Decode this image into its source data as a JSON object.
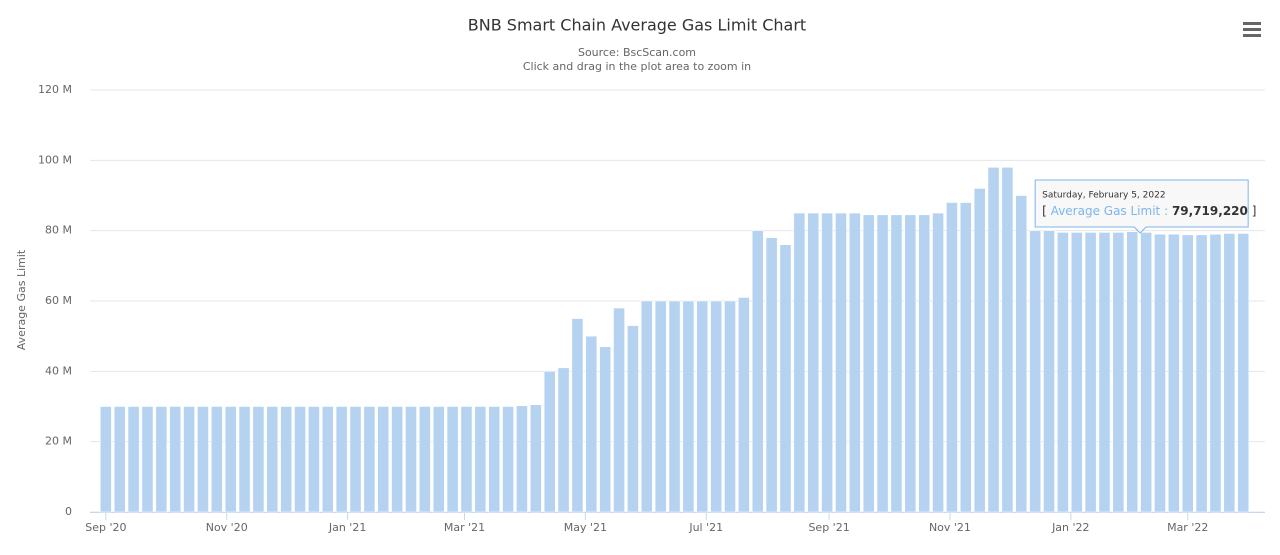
{
  "chart_data": {
    "type": "bar",
    "title": "BNB Smart Chain Average Gas Limit Chart",
    "subtitle": [
      "Source: BscScan.com",
      "Click and drag in the plot area to zoom in"
    ],
    "y_label": "Average Gas Limit",
    "x": [
      "2020-09-01",
      "2020-09-08",
      "2020-09-15",
      "2020-09-22",
      "2020-09-29",
      "2020-10-06",
      "2020-10-13",
      "2020-10-20",
      "2020-10-27",
      "2020-11-03",
      "2020-11-10",
      "2020-11-17",
      "2020-11-24",
      "2020-12-01",
      "2020-12-08",
      "2020-12-15",
      "2020-12-22",
      "2020-12-29",
      "2021-01-05",
      "2021-01-12",
      "2021-01-19",
      "2021-01-26",
      "2021-02-02",
      "2021-02-09",
      "2021-02-16",
      "2021-02-23",
      "2021-03-02",
      "2021-03-09",
      "2021-03-16",
      "2021-03-23",
      "2021-03-30",
      "2021-04-06",
      "2021-04-13",
      "2021-04-20",
      "2021-04-27",
      "2021-05-04",
      "2021-05-11",
      "2021-05-18",
      "2021-05-25",
      "2021-06-01",
      "2021-06-08",
      "2021-06-15",
      "2021-06-22",
      "2021-06-29",
      "2021-07-06",
      "2021-07-13",
      "2021-07-20",
      "2021-07-27",
      "2021-08-03",
      "2021-08-10",
      "2021-08-17",
      "2021-08-24",
      "2021-08-31",
      "2021-09-07",
      "2021-09-14",
      "2021-09-21",
      "2021-09-28",
      "2021-10-05",
      "2021-10-12",
      "2021-10-19",
      "2021-10-26",
      "2021-11-02",
      "2021-11-09",
      "2021-11-16",
      "2021-11-23",
      "2021-11-30",
      "2021-12-07",
      "2021-12-14",
      "2021-12-21",
      "2021-12-28",
      "2022-01-04",
      "2022-01-11",
      "2022-01-18",
      "2022-01-25",
      "2022-02-01",
      "2022-02-08",
      "2022-02-15",
      "2022-02-22",
      "2022-03-01",
      "2022-03-08",
      "2022-03-15",
      "2022-03-22",
      "2022-03-29"
    ],
    "series": [
      {
        "name": "Average Gas Limit",
        "color": "#b5d3f1",
        "values": [
          30,
          30,
          30,
          30,
          30,
          30,
          30,
          30,
          30,
          30,
          30,
          30,
          30,
          30,
          30,
          30,
          30,
          30,
          30,
          30,
          30,
          30,
          30,
          30,
          30,
          30,
          30,
          30,
          30,
          30,
          30.2,
          30.5,
          40,
          41,
          55,
          50,
          47,
          58,
          53,
          60,
          60,
          60,
          60,
          60,
          60,
          60,
          61,
          80,
          78,
          76,
          85,
          85,
          85,
          85,
          85,
          84.5,
          84.5,
          84.5,
          84.5,
          84.5,
          85,
          88,
          88,
          92,
          98,
          98,
          90,
          80,
          80,
          79.5,
          79.5,
          79.5,
          79.5,
          79.5,
          79.7,
          79.5,
          79,
          79,
          78.8,
          78.8,
          79,
          79.2,
          79.2
        ]
      }
    ],
    "xlim": [
      "2020-08-24",
      "2022-04-09"
    ],
    "xticks": [
      {
        "value": "2020-09-01",
        "label": "Sep '20"
      },
      {
        "value": "2020-11-01",
        "label": "Nov '20"
      },
      {
        "value": "2021-01-01",
        "label": "Jan '21"
      },
      {
        "value": "2021-03-01",
        "label": "Mar '21"
      },
      {
        "value": "2021-05-01",
        "label": "May '21"
      },
      {
        "value": "2021-07-01",
        "label": "Jul '21"
      },
      {
        "value": "2021-09-01",
        "label": "Sep '21"
      },
      {
        "value": "2021-11-01",
        "label": "Nov '21"
      },
      {
        "value": "2022-01-01",
        "label": "Jan '22"
      },
      {
        "value": "2022-03-01",
        "label": "Mar '22"
      }
    ],
    "ylim": [
      0,
      120
    ],
    "yticks": [
      0,
      {
        "value": 20,
        "label": "20 M"
      },
      {
        "value": 40,
        "label": "40 M"
      },
      {
        "value": 60,
        "label": "60 M"
      },
      {
        "value": 80,
        "label": "80 M"
      },
      {
        "value": 100,
        "label": "100 M"
      },
      {
        "value": 120,
        "label": "120 M"
      }
    ],
    "grid": true,
    "tooltip": {
      "date": "Saturday, February 5, 2022",
      "x": "2022-02-05",
      "open": "[",
      "separator": ":",
      "value": "79,719,220",
      "close": "]"
    }
  }
}
